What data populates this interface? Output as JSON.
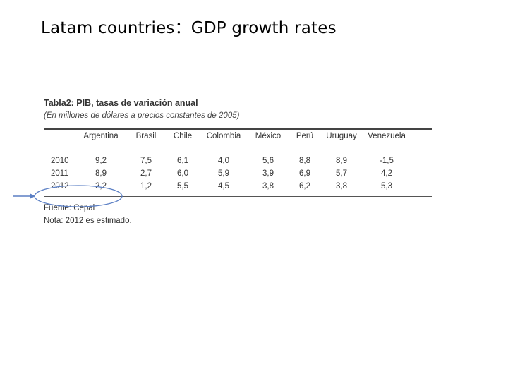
{
  "slide": {
    "title": "Latam countries：GDP growth rates"
  },
  "table": {
    "title": "Tabla2: PIB, tasas de variación anual",
    "subtitle": "(En millones de dólares a precios constantes de 2005)",
    "columns": [
      "",
      "Argentina",
      "Brasil",
      "Chile",
      "Colombia",
      "México",
      "Perú",
      "Uruguay",
      "Venezuela"
    ],
    "rows": [
      {
        "year": "2010",
        "values": [
          "9,2",
          "7,5",
          "6,1",
          "4,0",
          "5,6",
          "8,8",
          "8,9",
          "-1,5"
        ]
      },
      {
        "year": "2011",
        "values": [
          "8,9",
          "2,7",
          "6,0",
          "5,9",
          "3,9",
          "6,9",
          "5,7",
          "4,2"
        ]
      },
      {
        "year": "2012",
        "values": [
          "2,2",
          "1,2",
          "5,5",
          "4,5",
          "3,8",
          "6,2",
          "3,8",
          "5,3"
        ]
      }
    ],
    "source": "Fuente: Cepal",
    "note": "Nota: 2012 es estimado."
  },
  "annotation": {
    "highlight": "Argentina 2012",
    "color": "#5b7fc4"
  }
}
